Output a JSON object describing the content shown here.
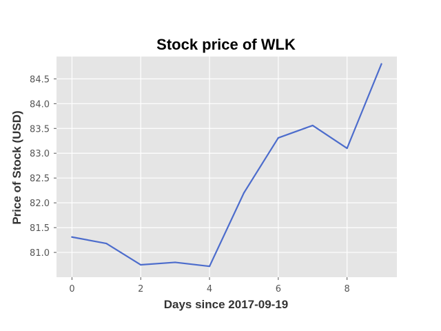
{
  "chart_data": {
    "type": "line",
    "title": "Stock price of WLK",
    "xlabel": "Days since 2017-09-19",
    "ylabel": "Price of Stock (USD)",
    "x": [
      0,
      1,
      2,
      3,
      4,
      5,
      6,
      7,
      8,
      9
    ],
    "series": [
      {
        "values": [
          81.31,
          81.18,
          80.75,
          80.8,
          80.72,
          82.2,
          83.31,
          83.56,
          83.1,
          84.8
        ],
        "color": "#4c6ccc"
      }
    ],
    "xlim": [
      -0.45,
      9.45
    ],
    "ylim": [
      80.5,
      84.95
    ],
    "xticks": [
      0,
      2,
      4,
      6,
      8
    ],
    "xtick_labels": [
      "0",
      "2",
      "4",
      "6",
      "8"
    ],
    "yticks": [
      81.0,
      81.5,
      82.0,
      82.5,
      83.0,
      83.5,
      84.0,
      84.5
    ],
    "ytick_labels": [
      "81.0",
      "81.5",
      "82.0",
      "82.5",
      "83.0",
      "83.5",
      "84.0",
      "84.5"
    ],
    "grid": true,
    "plot_background": "#e5e5e5",
    "grid_color": "#ffffff",
    "legend": "none"
  }
}
